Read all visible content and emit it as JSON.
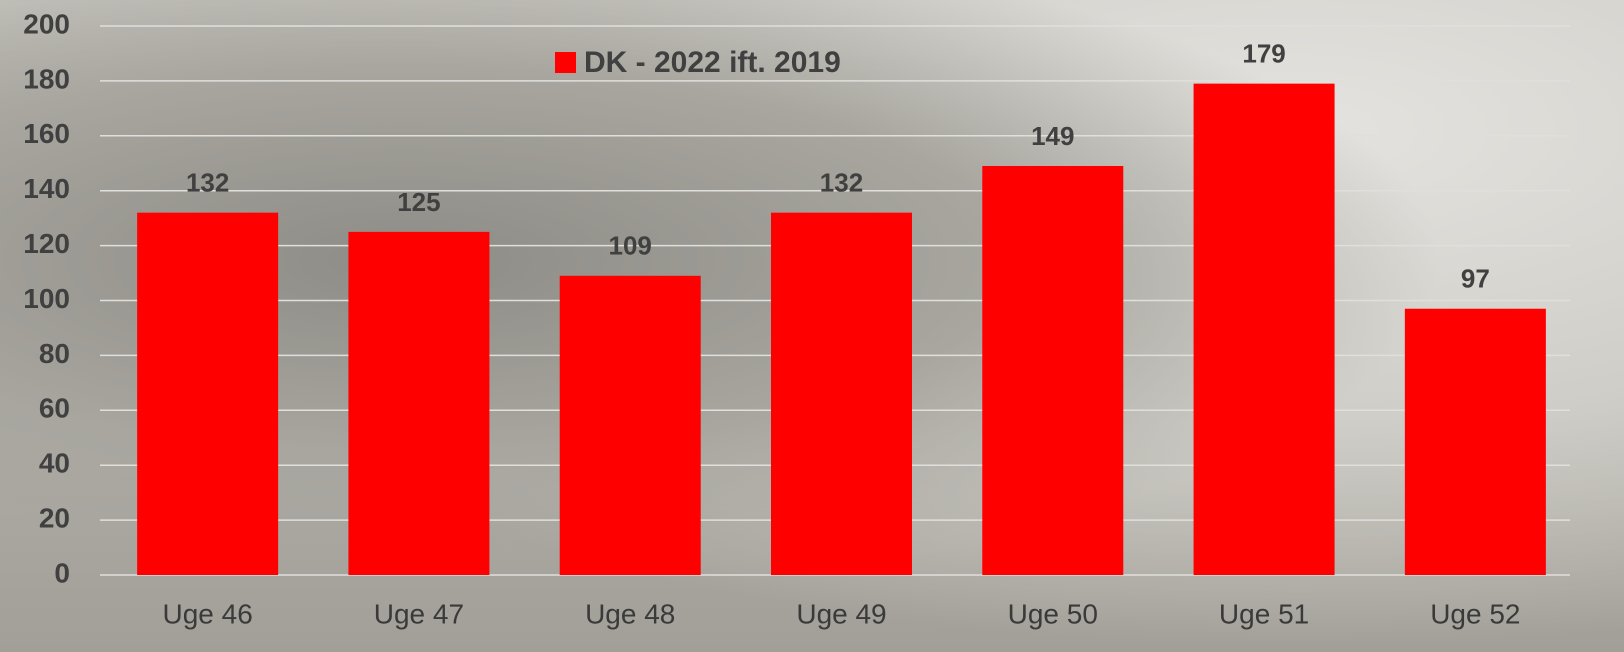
{
  "chart_data": {
    "type": "bar",
    "categories": [
      "Uge 46",
      "Uge 47",
      "Uge 48",
      "Uge 49",
      "Uge 50",
      "Uge 51",
      "Uge 52"
    ],
    "series": [
      {
        "name": "DK - 2022 ift. 2019",
        "color": "#ff0000",
        "values": [
          132,
          125,
          109,
          132,
          149,
          179,
          97
        ]
      }
    ],
    "ylim": [
      0,
      200
    ],
    "yticks": [
      0,
      20,
      40,
      60,
      80,
      100,
      120,
      140,
      160,
      180,
      200
    ],
    "grid": true,
    "legend": "top",
    "data_labels": true
  }
}
